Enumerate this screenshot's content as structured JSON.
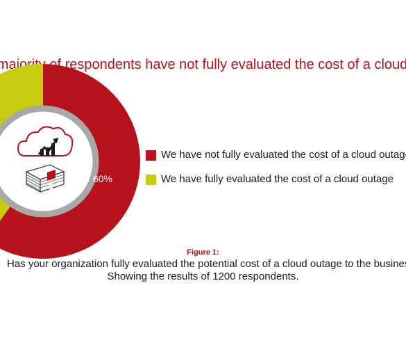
{
  "chart_data": {
    "type": "pie",
    "title": "A majority of respondents have not fully evaluated the cost of a cloud outage",
    "slices": [
      {
        "label": "We have not fully evaluated the cost of a cloud outage",
        "value": 60,
        "value_label": "60%",
        "color": "#b5121b"
      },
      {
        "label": "We have fully evaluated the cost of a cloud outage",
        "value": 40,
        "value_label": "",
        "color": "#c8cc0e"
      }
    ],
    "legend_position": "right"
  },
  "figure": {
    "label": "Figure 1:",
    "question": "Has your organization fully evaluated the potential cost of a cloud outage to the business?",
    "note": "Showing the results of 1200 respondents."
  },
  "icons": [
    "cloud-chart-icon",
    "money-stack-icon"
  ]
}
